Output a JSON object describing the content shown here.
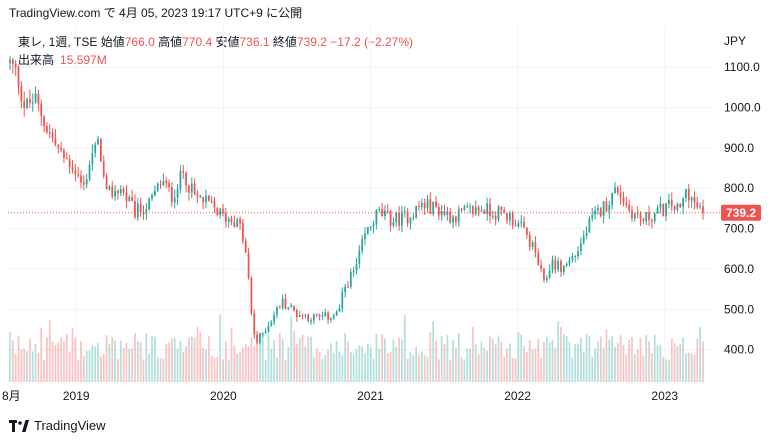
{
  "header": {
    "published_line": "TradingView.com で 4月 05, 2023 19:17 UTC+9 に公開"
  },
  "legend": {
    "symbol": "東レ, 1週, TSE",
    "open_label": "始値",
    "open_value": "766.0",
    "high_label": "高値",
    "high_value": "770.4",
    "low_label": "安値",
    "low_value": "736.1",
    "close_label": "終値",
    "close_value": "739.2",
    "change": "−17.2 (−2.27%)",
    "volume_label": "出来高",
    "volume_value": "15.597M"
  },
  "currency": "JPY",
  "price_tag": "739.2",
  "footer": {
    "brand": "TradingView"
  },
  "colors": {
    "up": "#26a69a",
    "down": "#ef5350",
    "grid": "#f0f3fa"
  },
  "chart_data": {
    "type": "candlestick",
    "interval": "1 week",
    "ylim": [
      320,
      1130
    ],
    "y_ticks": [
      "1100.0",
      "1000.0",
      "900.0",
      "800.0",
      "700.0",
      "600.0",
      "500.0",
      "400.0"
    ],
    "x_ticks": [
      "8月",
      "2019",
      "2020",
      "2021",
      "2022",
      "2023"
    ],
    "last_price": 739.2,
    "anchors": [
      [
        2018.55,
        1110
      ],
      [
        2018.6,
        1080
      ],
      [
        2018.65,
        1000
      ],
      [
        2018.72,
        1020
      ],
      [
        2018.8,
        950
      ],
      [
        2018.9,
        880
      ],
      [
        2018.97,
        860
      ],
      [
        2019.05,
        800
      ],
      [
        2019.1,
        880
      ],
      [
        2019.16,
        910
      ],
      [
        2019.2,
        780
      ],
      [
        2019.3,
        800
      ],
      [
        2019.4,
        740
      ],
      [
        2019.5,
        760
      ],
      [
        2019.58,
        820
      ],
      [
        2019.65,
        780
      ],
      [
        2019.73,
        840
      ],
      [
        2019.8,
        780
      ],
      [
        2019.9,
        760
      ],
      [
        2020.0,
        730
      ],
      [
        2020.08,
        720
      ],
      [
        2020.12,
        700
      ],
      [
        2020.16,
        620
      ],
      [
        2020.2,
        450
      ],
      [
        2020.23,
        420
      ],
      [
        2020.3,
        460
      ],
      [
        2020.4,
        520
      ],
      [
        2020.5,
        490
      ],
      [
        2020.6,
        480
      ],
      [
        2020.7,
        480
      ],
      [
        2020.78,
        490
      ],
      [
        2020.83,
        560
      ],
      [
        2020.9,
        600
      ],
      [
        2020.96,
        680
      ],
      [
        2021.05,
        740
      ],
      [
        2021.15,
        720
      ],
      [
        2021.25,
        730
      ],
      [
        2021.35,
        760
      ],
      [
        2021.45,
        750
      ],
      [
        2021.55,
        730
      ],
      [
        2021.65,
        740
      ],
      [
        2021.75,
        750
      ],
      [
        2021.85,
        740
      ],
      [
        2021.95,
        730
      ],
      [
        2022.05,
        690
      ],
      [
        2022.12,
        640
      ],
      [
        2022.18,
        560
      ],
      [
        2022.23,
        620
      ],
      [
        2022.3,
        600
      ],
      [
        2022.4,
        640
      ],
      [
        2022.5,
        720
      ],
      [
        2022.6,
        760
      ],
      [
        2022.68,
        800
      ],
      [
        2022.75,
        750
      ],
      [
        2022.85,
        720
      ],
      [
        2022.95,
        740
      ],
      [
        2023.05,
        760
      ],
      [
        2023.1,
        740
      ],
      [
        2023.15,
        800
      ],
      [
        2023.2,
        760
      ],
      [
        2023.26,
        739.2
      ]
    ]
  }
}
